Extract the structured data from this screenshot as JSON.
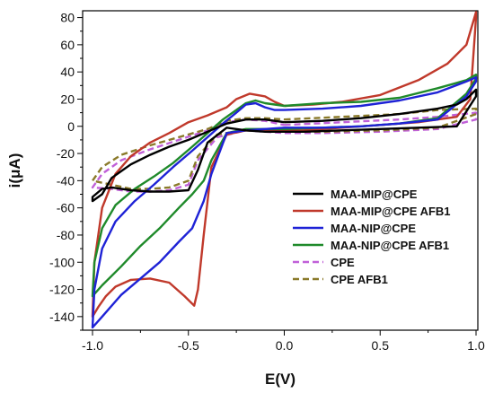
{
  "chart_data": {
    "type": "line",
    "xlabel": "E(V)",
    "ylabel": "i(μA)",
    "xlim": [
      -1.0,
      1.0
    ],
    "ylim": [
      -150,
      85
    ],
    "x_ticks": [
      -1.0,
      -0.5,
      0.0,
      0.5,
      1.0
    ],
    "x_tick_labels": [
      "-1.0",
      "-0.5",
      "0.0",
      "0.5",
      "1.0"
    ],
    "y_ticks": [
      -140,
      -120,
      -100,
      -80,
      -60,
      -40,
      -20,
      0,
      20,
      40,
      60,
      80
    ],
    "y_tick_labels": [
      "-140",
      "-120",
      "-100",
      "-80",
      "-60",
      "-40",
      "-20",
      "0",
      "20",
      "40",
      "60",
      "80"
    ],
    "grid": false,
    "legend_position": "lower-right",
    "series": [
      {
        "name": "MAA-MIP@CPE",
        "color": "#000000",
        "dash": "solid",
        "points": [
          [
            0.0,
            3
          ],
          [
            0.2,
            4
          ],
          [
            0.4,
            6
          ],
          [
            0.6,
            9
          ],
          [
            0.8,
            13
          ],
          [
            0.9,
            16
          ],
          [
            0.95,
            20
          ],
          [
            1.0,
            27
          ],
          [
            1.0,
            22
          ],
          [
            0.9,
            0
          ],
          [
            0.7,
            -1
          ],
          [
            0.5,
            -2
          ],
          [
            0.3,
            -3
          ],
          [
            0.1,
            -4
          ],
          [
            0.0,
            -4
          ],
          [
            -0.1,
            -4
          ],
          [
            -0.2,
            -3
          ],
          [
            -0.3,
            -1
          ],
          [
            -0.4,
            -12
          ],
          [
            -0.45,
            -32
          ],
          [
            -0.5,
            -47
          ],
          [
            -0.6,
            -48
          ],
          [
            -0.7,
            -48
          ],
          [
            -0.8,
            -47
          ],
          [
            -0.9,
            -45
          ],
          [
            -0.95,
            -46
          ],
          [
            -1.0,
            -52
          ],
          [
            -1.0,
            -55
          ],
          [
            -0.95,
            -50
          ],
          [
            -0.9,
            -38
          ],
          [
            -0.8,
            -28
          ],
          [
            -0.7,
            -21
          ],
          [
            -0.6,
            -15
          ],
          [
            -0.5,
            -10
          ],
          [
            -0.4,
            -4
          ],
          [
            -0.3,
            2
          ],
          [
            -0.2,
            5
          ],
          [
            -0.1,
            5
          ],
          [
            0.0,
            3
          ]
        ]
      },
      {
        "name": "MAA-MIP@CPE   AFB1",
        "color": "#c0392b",
        "dash": "solid",
        "points": [
          [
            0.0,
            15
          ],
          [
            0.15,
            16
          ],
          [
            0.3,
            18
          ],
          [
            0.5,
            23
          ],
          [
            0.7,
            34
          ],
          [
            0.85,
            46
          ],
          [
            0.95,
            60
          ],
          [
            1.0,
            84
          ],
          [
            1.0,
            80
          ],
          [
            0.97,
            20
          ],
          [
            0.9,
            7
          ],
          [
            0.7,
            3
          ],
          [
            0.5,
            1
          ],
          [
            0.3,
            -1
          ],
          [
            0.1,
            -3
          ],
          [
            0.0,
            -3
          ],
          [
            -0.1,
            -3
          ],
          [
            -0.2,
            -3
          ],
          [
            -0.3,
            -6
          ],
          [
            -0.38,
            -30
          ],
          [
            -0.42,
            -80
          ],
          [
            -0.45,
            -120
          ],
          [
            -0.47,
            -132
          ],
          [
            -0.52,
            -125
          ],
          [
            -0.6,
            -115
          ],
          [
            -0.7,
            -112
          ],
          [
            -0.8,
            -113
          ],
          [
            -0.88,
            -118
          ],
          [
            -0.93,
            -125
          ],
          [
            -0.97,
            -133
          ],
          [
            -1.0,
            -140
          ],
          [
            -0.99,
            -100
          ],
          [
            -0.95,
            -60
          ],
          [
            -0.88,
            -35
          ],
          [
            -0.8,
            -22
          ],
          [
            -0.7,
            -12
          ],
          [
            -0.6,
            -5
          ],
          [
            -0.5,
            3
          ],
          [
            -0.4,
            8
          ],
          [
            -0.3,
            14
          ],
          [
            -0.25,
            20
          ],
          [
            -0.18,
            24
          ],
          [
            -0.1,
            22
          ],
          [
            -0.05,
            18
          ],
          [
            0.0,
            15
          ]
        ]
      },
      {
        "name": "MAA-NIP@CPE",
        "color": "#1e22d6",
        "dash": "solid",
        "points": [
          [
            0.0,
            12
          ],
          [
            0.2,
            13
          ],
          [
            0.4,
            15
          ],
          [
            0.6,
            19
          ],
          [
            0.8,
            25
          ],
          [
            0.95,
            33
          ],
          [
            1.0,
            36
          ],
          [
            1.0,
            33
          ],
          [
            0.95,
            22
          ],
          [
            0.8,
            5
          ],
          [
            0.6,
            2
          ],
          [
            0.4,
            0
          ],
          [
            0.2,
            -1
          ],
          [
            0.0,
            -1
          ],
          [
            -0.1,
            -2
          ],
          [
            -0.2,
            -3
          ],
          [
            -0.3,
            -5
          ],
          [
            -0.38,
            -35
          ],
          [
            -0.42,
            -55
          ],
          [
            -0.48,
            -75
          ],
          [
            -0.55,
            -85
          ],
          [
            -0.65,
            -100
          ],
          [
            -0.75,
            -112
          ],
          [
            -0.85,
            -124
          ],
          [
            -0.95,
            -140
          ],
          [
            -1.0,
            -148
          ],
          [
            -0.99,
            -120
          ],
          [
            -0.95,
            -90
          ],
          [
            -0.88,
            -70
          ],
          [
            -0.78,
            -55
          ],
          [
            -0.68,
            -43
          ],
          [
            -0.58,
            -30
          ],
          [
            -0.48,
            -18
          ],
          [
            -0.4,
            -8
          ],
          [
            -0.32,
            2
          ],
          [
            -0.25,
            10
          ],
          [
            -0.2,
            16
          ],
          [
            -0.15,
            17
          ],
          [
            -0.1,
            14
          ],
          [
            -0.05,
            12
          ],
          [
            0.0,
            12
          ]
        ]
      },
      {
        "name": "MAA-NIP@CPE     AFB1",
        "color": "#1f8a2a",
        "dash": "solid",
        "points": [
          [
            0.0,
            15
          ],
          [
            0.2,
            17
          ],
          [
            0.4,
            18
          ],
          [
            0.6,
            21
          ],
          [
            0.8,
            28
          ],
          [
            0.95,
            34
          ],
          [
            1.0,
            38
          ],
          [
            1.0,
            35
          ],
          [
            0.95,
            24
          ],
          [
            0.8,
            6
          ],
          [
            0.6,
            2
          ],
          [
            0.4,
            0
          ],
          [
            0.2,
            -1
          ],
          [
            0.0,
            -2
          ],
          [
            -0.1,
            -2
          ],
          [
            -0.2,
            -2
          ],
          [
            -0.3,
            -5
          ],
          [
            -0.38,
            -25
          ],
          [
            -0.42,
            -40
          ],
          [
            -0.48,
            -50
          ],
          [
            -0.55,
            -60
          ],
          [
            -0.65,
            -75
          ],
          [
            -0.75,
            -88
          ],
          [
            -0.85,
            -103
          ],
          [
            -0.95,
            -117
          ],
          [
            -1.0,
            -125
          ],
          [
            -0.99,
            -100
          ],
          [
            -0.95,
            -75
          ],
          [
            -0.88,
            -58
          ],
          [
            -0.78,
            -46
          ],
          [
            -0.68,
            -37
          ],
          [
            -0.58,
            -27
          ],
          [
            -0.48,
            -15
          ],
          [
            -0.4,
            -5
          ],
          [
            -0.32,
            5
          ],
          [
            -0.25,
            12
          ],
          [
            -0.2,
            17
          ],
          [
            -0.15,
            19
          ],
          [
            -0.1,
            17
          ],
          [
            -0.05,
            16
          ],
          [
            0.0,
            15
          ]
        ]
      },
      {
        "name": "CPE",
        "color": "#c060d8",
        "dash": "dashed",
        "points": [
          [
            0.0,
            1
          ],
          [
            0.3,
            3
          ],
          [
            0.6,
            5
          ],
          [
            0.8,
            7
          ],
          [
            1.0,
            10
          ],
          [
            1.0,
            5
          ],
          [
            0.8,
            -2
          ],
          [
            0.5,
            -4
          ],
          [
            0.2,
            -5
          ],
          [
            0.0,
            -5
          ],
          [
            -0.2,
            -3
          ],
          [
            -0.35,
            -8
          ],
          [
            -0.45,
            -25
          ],
          [
            -0.5,
            -43
          ],
          [
            -0.6,
            -47
          ],
          [
            -0.7,
            -48
          ],
          [
            -0.8,
            -48
          ],
          [
            -0.9,
            -46
          ],
          [
            -1.0,
            -45
          ],
          [
            -0.95,
            -35
          ],
          [
            -0.85,
            -25
          ],
          [
            -0.7,
            -17
          ],
          [
            -0.55,
            -10
          ],
          [
            -0.4,
            -3
          ],
          [
            -0.3,
            3
          ],
          [
            -0.2,
            5
          ],
          [
            -0.1,
            4
          ],
          [
            0.0,
            1
          ]
        ]
      },
      {
        "name": "CPE  AFB1",
        "color": "#8a7a2a",
        "dash": "dashed",
        "points": [
          [
            0.0,
            5
          ],
          [
            0.3,
            7
          ],
          [
            0.6,
            9
          ],
          [
            0.8,
            12
          ],
          [
            1.0,
            13
          ],
          [
            1.0,
            9
          ],
          [
            0.8,
            -1
          ],
          [
            0.5,
            -3
          ],
          [
            0.2,
            -4
          ],
          [
            0.0,
            -4
          ],
          [
            -0.2,
            -3
          ],
          [
            -0.35,
            -6
          ],
          [
            -0.45,
            -22
          ],
          [
            -0.5,
            -40
          ],
          [
            -0.6,
            -45
          ],
          [
            -0.7,
            -46
          ],
          [
            -0.8,
            -46
          ],
          [
            -0.9,
            -43
          ],
          [
            -1.0,
            -40
          ],
          [
            -0.95,
            -30
          ],
          [
            -0.85,
            -21
          ],
          [
            -0.7,
            -14
          ],
          [
            -0.55,
            -8
          ],
          [
            -0.4,
            -2
          ],
          [
            -0.3,
            4
          ],
          [
            -0.2,
            6
          ],
          [
            -0.1,
            6
          ],
          [
            0.0,
            5
          ]
        ]
      }
    ]
  }
}
